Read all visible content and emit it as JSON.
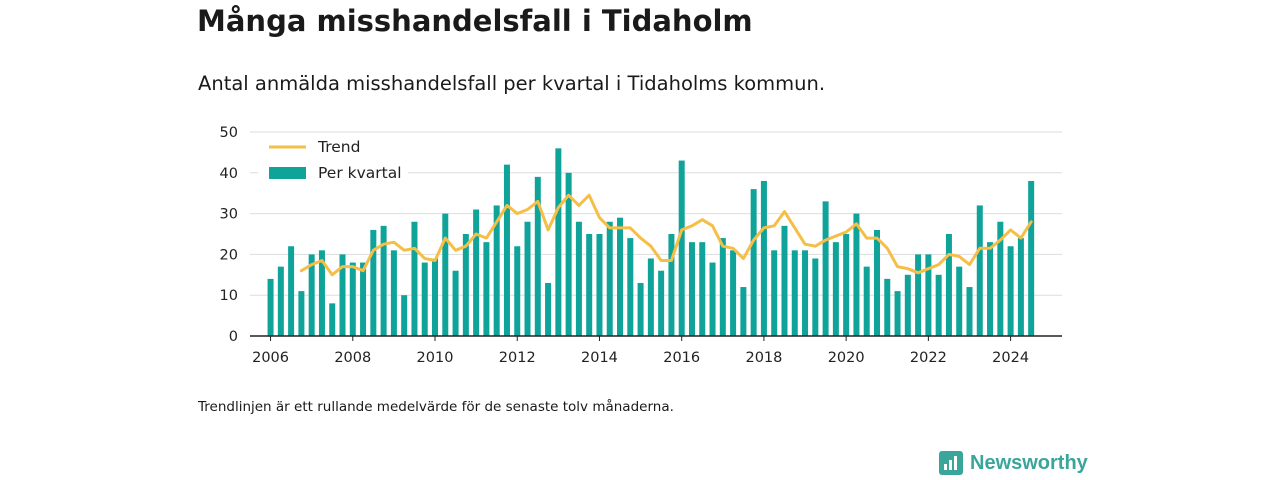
{
  "title": "Många misshandelsfall i Tidaholm",
  "subtitle": "Antal anmälda misshandelsfall per kvartal i Tidaholms kommun.",
  "note": "Trendlinjen är ett rullande medelvärde för de senaste tolv månaderna.",
  "brand": "Newsworthy",
  "colors": {
    "bar": "#0fa39a",
    "trend": "#f5be46",
    "grid": "#dddddd",
    "axis": "#222222"
  },
  "chart_data": {
    "type": "bar",
    "xlim": [
      2005.5,
      2025.25
    ],
    "ylim": [
      0,
      50
    ],
    "x_ticks": [
      2006,
      2008,
      2010,
      2012,
      2014,
      2016,
      2018,
      2020,
      2022,
      2024
    ],
    "y_ticks": [
      0,
      10,
      20,
      30,
      40,
      50
    ],
    "grid": true,
    "legend_position": "top-left",
    "x_start": 2006.0,
    "x_step": 0.25,
    "series": [
      {
        "name": "Per kvartal",
        "type": "bar",
        "values": [
          14,
          17,
          22,
          11,
          20,
          21,
          8,
          20,
          18,
          18,
          26,
          27,
          21,
          10,
          28,
          18,
          19,
          30,
          16,
          25,
          31,
          23,
          32,
          42,
          22,
          28,
          39,
          13,
          46,
          40,
          28,
          25,
          25,
          28,
          29,
          24,
          13,
          19,
          16,
          25,
          43,
          23,
          23,
          18,
          24,
          21,
          12,
          36,
          38,
          21,
          27,
          21,
          21,
          19,
          33,
          23,
          25,
          30,
          17,
          26,
          14,
          11,
          15,
          20,
          20,
          15,
          25,
          17,
          12,
          32,
          23,
          28,
          22,
          24,
          38
        ]
      },
      {
        "name": "Trend",
        "type": "line",
        "x_start": 2006.75,
        "values": [
          16,
          17.5,
          18.5,
          15,
          17,
          17,
          16,
          21,
          22.5,
          23,
          21,
          21.5,
          19,
          18.5,
          24,
          21,
          22,
          25,
          24,
          28,
          32,
          30,
          31,
          33,
          26,
          31.5,
          34.5,
          32,
          34.5,
          29,
          26.5,
          26.5,
          26.5,
          24,
          22,
          18.5,
          18.5,
          26,
          27,
          28.5,
          27,
          22,
          21.5,
          19,
          23.5,
          26.5,
          27,
          30.5,
          26.5,
          22.5,
          22,
          23.5,
          24.5,
          25.5,
          27.5,
          24,
          24,
          21.5,
          17,
          16.5,
          15.5,
          16.5,
          17.5,
          20,
          19.5,
          17.5,
          21.5,
          21.5,
          23.5,
          26,
          24,
          28
        ]
      }
    ]
  }
}
